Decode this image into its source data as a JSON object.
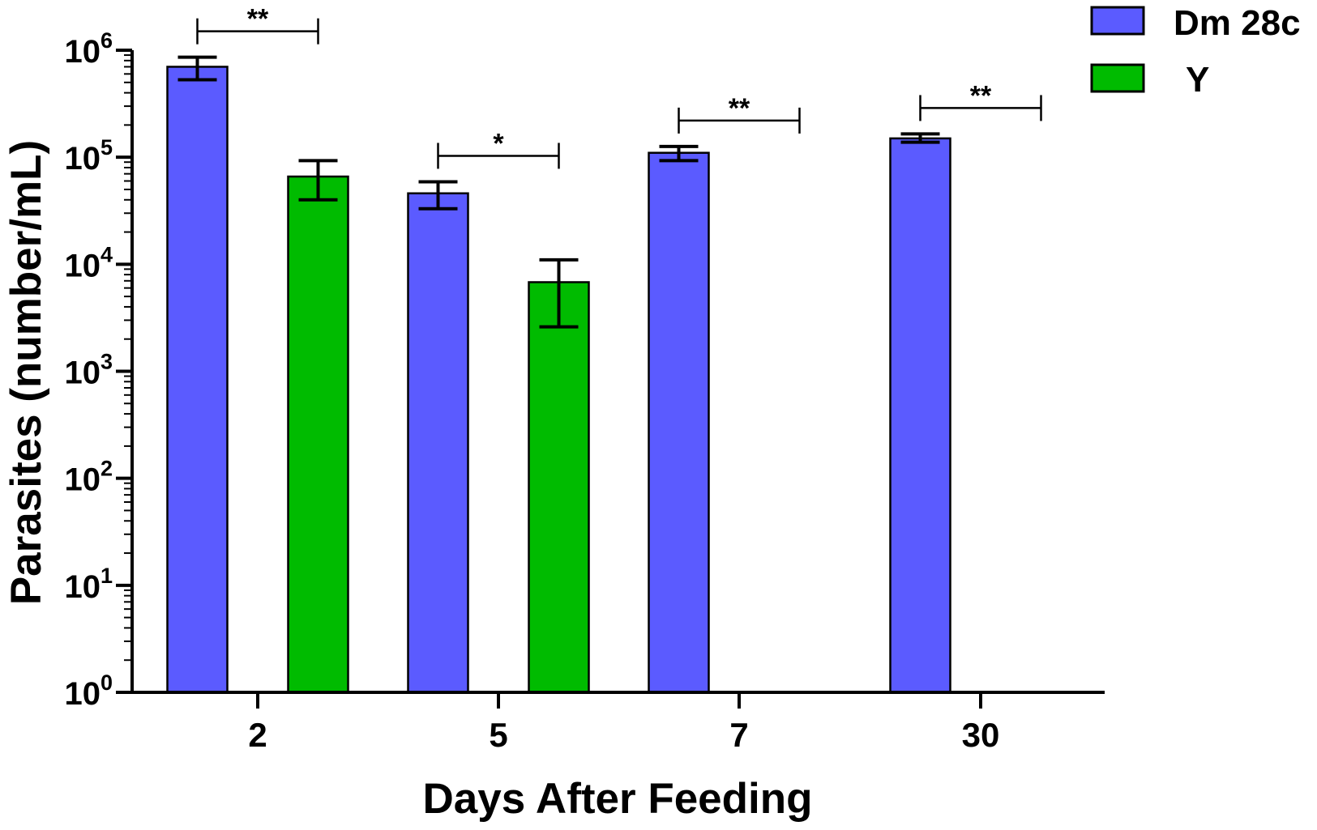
{
  "chart_data": {
    "type": "bar",
    "xlabel": "Days After Feeding",
    "ylabel": "Parasites (number/mL)",
    "scale": "log10",
    "ylim": [
      1,
      1000000
    ],
    "categories": [
      "2",
      "5",
      "7",
      "30"
    ],
    "yticks": [
      {
        "base": "10",
        "exp": "0"
      },
      {
        "base": "10",
        "exp": "1"
      },
      {
        "base": "10",
        "exp": "2"
      },
      {
        "base": "10",
        "exp": "3"
      },
      {
        "base": "10",
        "exp": "4"
      },
      {
        "base": "10",
        "exp": "5"
      },
      {
        "base": "10",
        "exp": "6"
      }
    ],
    "series": [
      {
        "name": "Dm 28c",
        "color": "#5b5bff",
        "values": [
          700000,
          46000,
          110000,
          150000
        ],
        "err_low": [
          530000,
          33000,
          93000,
          138000
        ],
        "err_high": [
          860000,
          59000,
          126000,
          165000
        ]
      },
      {
        "name": "Y",
        "color": "#00bb00",
        "values": [
          66000,
          6800,
          null,
          null
        ],
        "err_low": [
          40000,
          2600,
          null,
          null
        ],
        "err_high": [
          93000,
          11000,
          null,
          null
        ]
      }
    ],
    "significance": [
      {
        "category": "2",
        "label": "**"
      },
      {
        "category": "5",
        "label": "*"
      },
      {
        "category": "7",
        "label": "**"
      },
      {
        "category": "30",
        "label": "**"
      }
    ],
    "legend": {
      "position": "top-right"
    }
  }
}
